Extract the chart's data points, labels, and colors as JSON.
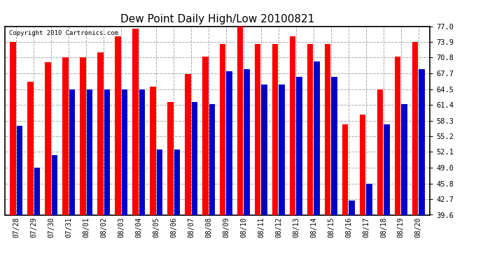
{
  "title": "Dew Point Daily High/Low 20100821",
  "copyright": "Copyright 2010 Cartronics.com",
  "dates": [
    "07/28",
    "07/29",
    "07/30",
    "07/31",
    "08/01",
    "08/02",
    "08/03",
    "08/04",
    "08/05",
    "08/06",
    "08/07",
    "08/08",
    "08/09",
    "08/10",
    "08/11",
    "08/12",
    "08/13",
    "08/14",
    "08/15",
    "08/16",
    "08/17",
    "08/18",
    "08/19",
    "08/20"
  ],
  "highs": [
    73.9,
    66.0,
    69.8,
    70.8,
    70.8,
    71.8,
    75.0,
    76.5,
    65.0,
    62.0,
    67.5,
    71.0,
    73.5,
    77.0,
    73.5,
    73.5,
    75.0,
    73.5,
    73.5,
    57.5,
    59.5,
    64.5,
    71.0,
    73.9
  ],
  "lows": [
    57.2,
    49.0,
    51.5,
    64.5,
    64.5,
    64.5,
    64.5,
    64.5,
    52.5,
    52.5,
    62.0,
    61.5,
    68.0,
    68.5,
    65.5,
    65.5,
    67.0,
    70.0,
    67.0,
    42.5,
    45.8,
    57.5,
    61.5,
    68.5
  ],
  "high_color": "#ff0000",
  "low_color": "#0000cc",
  "bg_color": "#ffffff",
  "grid_color": "#aaaaaa",
  "title_fontsize": 11,
  "ymin": 39.6,
  "ymax": 77.0,
  "yticks": [
    39.6,
    42.7,
    45.8,
    49.0,
    52.1,
    55.2,
    58.3,
    61.4,
    64.5,
    67.7,
    70.8,
    73.9,
    77.0
  ]
}
